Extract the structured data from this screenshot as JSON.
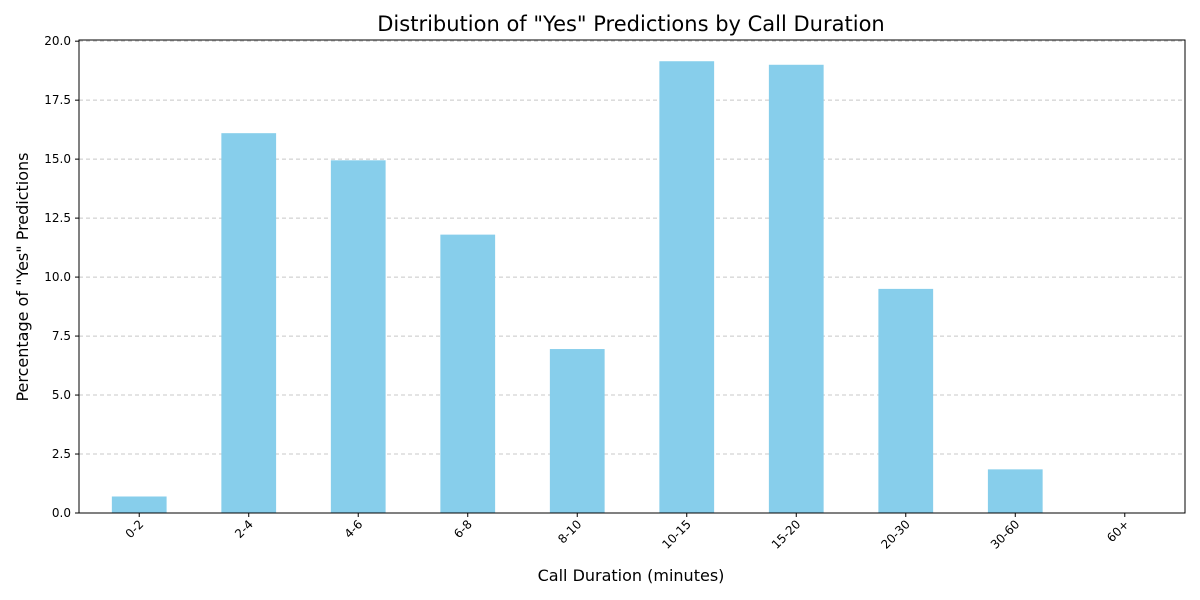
{
  "chart_data": {
    "type": "bar",
    "title": "Distribution of \"Yes\" Predictions by Call Duration",
    "xlabel": "Call Duration (minutes)",
    "ylabel": "Percentage of \"Yes\" Predictions",
    "categories": [
      "0-2",
      "2-4",
      "4-6",
      "6-8",
      "8-10",
      "10-15",
      "15-20",
      "20-30",
      "30-60",
      "60+"
    ],
    "values": [
      0.7,
      16.1,
      14.95,
      11.8,
      6.95,
      19.15,
      19.0,
      9.5,
      1.85,
      0.0
    ],
    "ylim": [
      0,
      20
    ],
    "yticks": [
      "0.0",
      "2.5",
      "5.0",
      "7.5",
      "10.0",
      "12.5",
      "15.0",
      "17.5",
      "20.0"
    ],
    "grid": "y-dashed",
    "bar_color": "#87ceeb",
    "grid_color": "#c8c8c8",
    "x_tick_rotation": "45°"
  }
}
